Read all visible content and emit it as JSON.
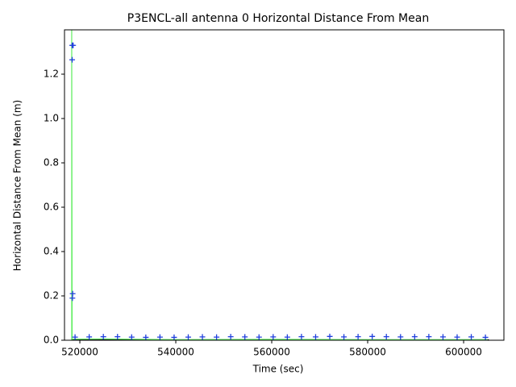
{
  "chart_data": {
    "type": "scatter",
    "title": "P3ENCL-all antenna 0 Horizontal Distance From Mean",
    "xlabel": "Time (sec)",
    "ylabel": "Horizontal Distance From Mean (m)",
    "xlim": [
      516800,
      608400
    ],
    "ylim": [
      0,
      1.4
    ],
    "xticks": [
      520000,
      540000,
      560000,
      580000,
      600000
    ],
    "yticks": [
      {
        "value": 0,
        "label": "0.0"
      },
      0.2,
      0.4,
      0.6,
      0.8,
      {
        "value": 1,
        "label": "1.0"
      },
      1.2
    ],
    "series": [
      {
        "style": "line",
        "color": "#000000",
        "x": [
          518200,
          530000,
          545000,
          560000,
          575000,
          590000,
          605300
        ],
        "values": [
          0.002,
          0.002,
          0.001,
          0.002,
          0.002,
          0.001,
          0.002
        ]
      },
      {
        "style": "line",
        "color": "#66ee66",
        "x": [
          518300,
          518300,
          518400,
          525000,
          540000,
          560000,
          580000,
          605000
        ],
        "values": [
          0,
          1.45,
          0.005,
          0.006,
          0.003,
          0.004,
          0.003,
          0.003
        ]
      },
      {
        "style": "plus",
        "color": "#1f3fdd",
        "x": [
          518400,
          518600,
          518400,
          518500,
          518450,
          519000,
          521950,
          524900,
          527850,
          530800,
          533750,
          536700,
          539650,
          542600,
          545550,
          548500,
          551450,
          554400,
          557350,
          560300,
          563250,
          566200,
          569150,
          572100,
          575050,
          578000,
          580950,
          583900,
          586850,
          589800,
          592750,
          595700,
          598650,
          601600,
          604550
        ],
        "values": [
          1.33,
          1.33,
          1.265,
          0.21,
          0.19,
          0.014,
          0.015,
          0.016,
          0.016,
          0.014,
          0.013,
          0.014,
          0.013,
          0.014,
          0.015,
          0.014,
          0.016,
          0.015,
          0.014,
          0.015,
          0.014,
          0.016,
          0.015,
          0.017,
          0.015,
          0.016,
          0.017,
          0.016,
          0.015,
          0.016,
          0.016,
          0.015,
          0.014,
          0.015,
          0.013
        ]
      }
    ]
  }
}
